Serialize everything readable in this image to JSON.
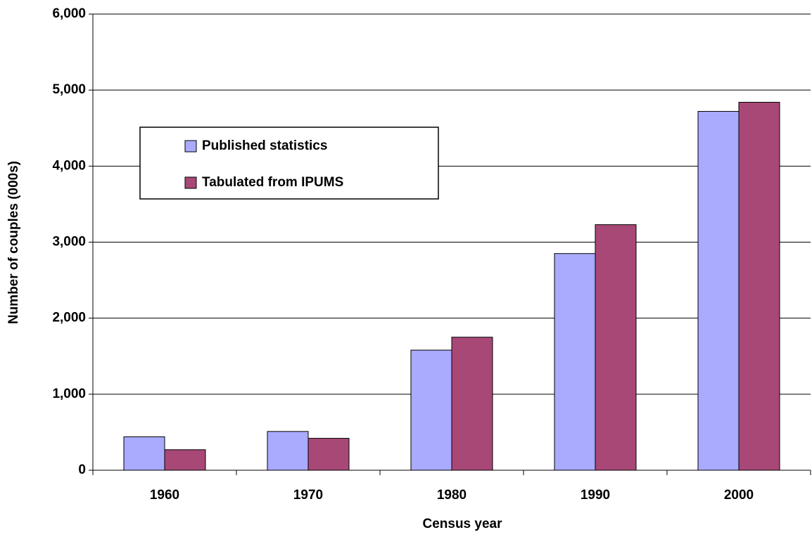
{
  "chart_data": {
    "type": "bar",
    "x_label": "Census year",
    "y_label": "Number of couples (000s)",
    "categories": [
      "1960",
      "1970",
      "1980",
      "1990",
      "2000"
    ],
    "series": [
      {
        "name": "Published statistics",
        "color": "#aaaaff",
        "values": [
          440,
          510,
          1580,
          2850,
          4720
        ]
      },
      {
        "name": "Tabulated from IPUMS",
        "color": "#a84876",
        "values": [
          270,
          420,
          1750,
          3230,
          4840
        ]
      }
    ],
    "ylim": [
      0,
      6000
    ],
    "yticks": [
      0,
      {
        "value": 1000,
        "label": "1,000"
      },
      {
        "value": 2000,
        "label": "2,000"
      },
      {
        "value": 3000,
        "label": "3,000"
      },
      {
        "value": 4000,
        "label": "4,000"
      },
      {
        "value": 5000,
        "label": "5,000"
      },
      {
        "value": 6000,
        "label": "6,000"
      }
    ],
    "grid": true,
    "legend": "upper left"
  }
}
